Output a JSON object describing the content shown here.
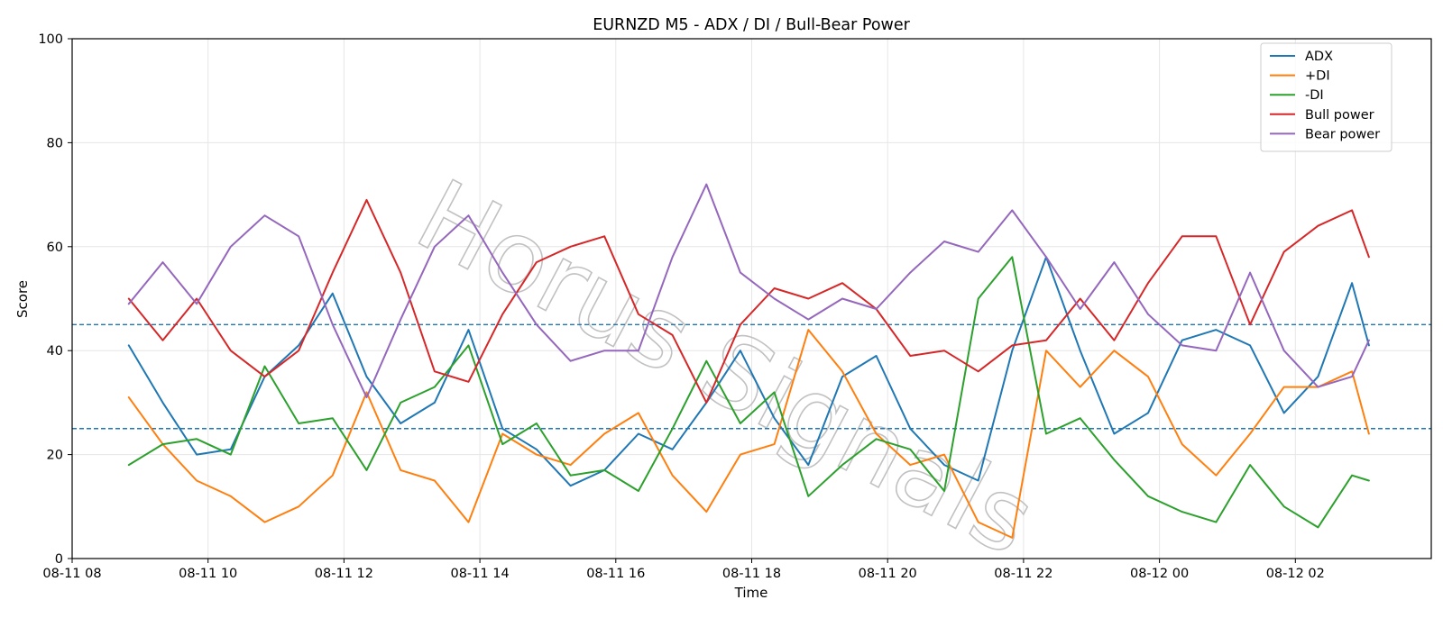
{
  "chart_data": {
    "type": "line",
    "title": "EURNZD M5 - ADX / DI / Bull-Bear Power",
    "xlabel": "Time",
    "ylabel": "Score",
    "ylim": [
      0,
      100
    ],
    "xlim": [
      "08-11 08:00",
      "08-12 04:00"
    ],
    "x_ticks": [
      "08-11 08",
      "08-11 10",
      "08-11 12",
      "08-11 14",
      "08-11 16",
      "08-11 18",
      "08-11 20",
      "08-11 22",
      "08-12 00",
      "08-12 02"
    ],
    "y_ticks": [
      "0",
      "20",
      "40",
      "60",
      "80",
      "100"
    ],
    "grid": true,
    "legend_position": "top-right",
    "watermark": "Horus Signals",
    "reference_lines": [
      {
        "y": 45,
        "style": "dashed",
        "color": "#1f77b4"
      },
      {
        "y": 25,
        "style": "dashed",
        "color": "#1f77b4"
      }
    ],
    "x": [
      "08-11 08:50",
      "08-11 09:20",
      "08-11 09:50",
      "08-11 10:20",
      "08-11 10:50",
      "08-11 11:20",
      "08-11 11:50",
      "08-11 12:20",
      "08-11 12:50",
      "08-11 13:20",
      "08-11 13:50",
      "08-11 14:20",
      "08-11 14:50",
      "08-11 15:20",
      "08-11 15:50",
      "08-11 16:20",
      "08-11 16:50",
      "08-11 17:20",
      "08-11 17:50",
      "08-11 18:20",
      "08-11 18:50",
      "08-11 19:20",
      "08-11 19:50",
      "08-11 20:20",
      "08-11 20:50",
      "08-11 21:20",
      "08-11 21:50",
      "08-11 22:20",
      "08-11 22:50",
      "08-11 23:20",
      "08-11 23:50",
      "08-12 00:20",
      "08-12 00:50",
      "08-12 01:20",
      "08-12 01:50",
      "08-12 02:20",
      "08-12 02:50",
      "08-12 03:05"
    ],
    "series": [
      {
        "name": "ADX",
        "color": "#1f77b4",
        "values": [
          41,
          30,
          20,
          21,
          35,
          41,
          51,
          35,
          26,
          30,
          44,
          25,
          21,
          14,
          17,
          24,
          21,
          30,
          40,
          27,
          18,
          35,
          39,
          25,
          18,
          15,
          40,
          58,
          40,
          24,
          28,
          42,
          44,
          41,
          28,
          35,
          53,
          41
        ]
      },
      {
        "name": "+DI",
        "color": "#ff7f0e",
        "values": [
          31,
          22,
          15,
          12,
          7,
          10,
          16,
          32,
          17,
          15,
          7,
          24,
          20,
          18,
          24,
          28,
          16,
          9,
          20,
          22,
          44,
          36,
          24,
          18,
          20,
          7,
          4,
          40,
          33,
          40,
          35,
          22,
          16,
          24,
          33,
          33,
          36,
          24
        ]
      },
      {
        "name": "-DI",
        "color": "#2ca02c",
        "values": [
          18,
          22,
          23,
          20,
          37,
          26,
          27,
          17,
          30,
          33,
          41,
          22,
          26,
          16,
          17,
          13,
          25,
          38,
          26,
          32,
          12,
          18,
          23,
          21,
          13,
          50,
          58,
          24,
          27,
          19,
          12,
          9,
          7,
          18,
          10,
          6,
          16,
          15
        ]
      },
      {
        "name": "Bull power",
        "color": "#d62728",
        "values": [
          50,
          42,
          50,
          40,
          35,
          40,
          55,
          69,
          55,
          36,
          34,
          47,
          57,
          60,
          62,
          47,
          43,
          30,
          45,
          52,
          50,
          53,
          48,
          39,
          40,
          36,
          41,
          42,
          50,
          42,
          53,
          62,
          62,
          45,
          59,
          64,
          67,
          58
        ]
      },
      {
        "name": "Bear power",
        "color": "#9467bd",
        "values": [
          49,
          57,
          49,
          60,
          66,
          62,
          45,
          31,
          46,
          60,
          66,
          55,
          45,
          38,
          40,
          40,
          58,
          72,
          55,
          50,
          46,
          50,
          48,
          55,
          61,
          59,
          67,
          58,
          48,
          57,
          47,
          41,
          40,
          55,
          40,
          33,
          35,
          42
        ]
      }
    ]
  }
}
